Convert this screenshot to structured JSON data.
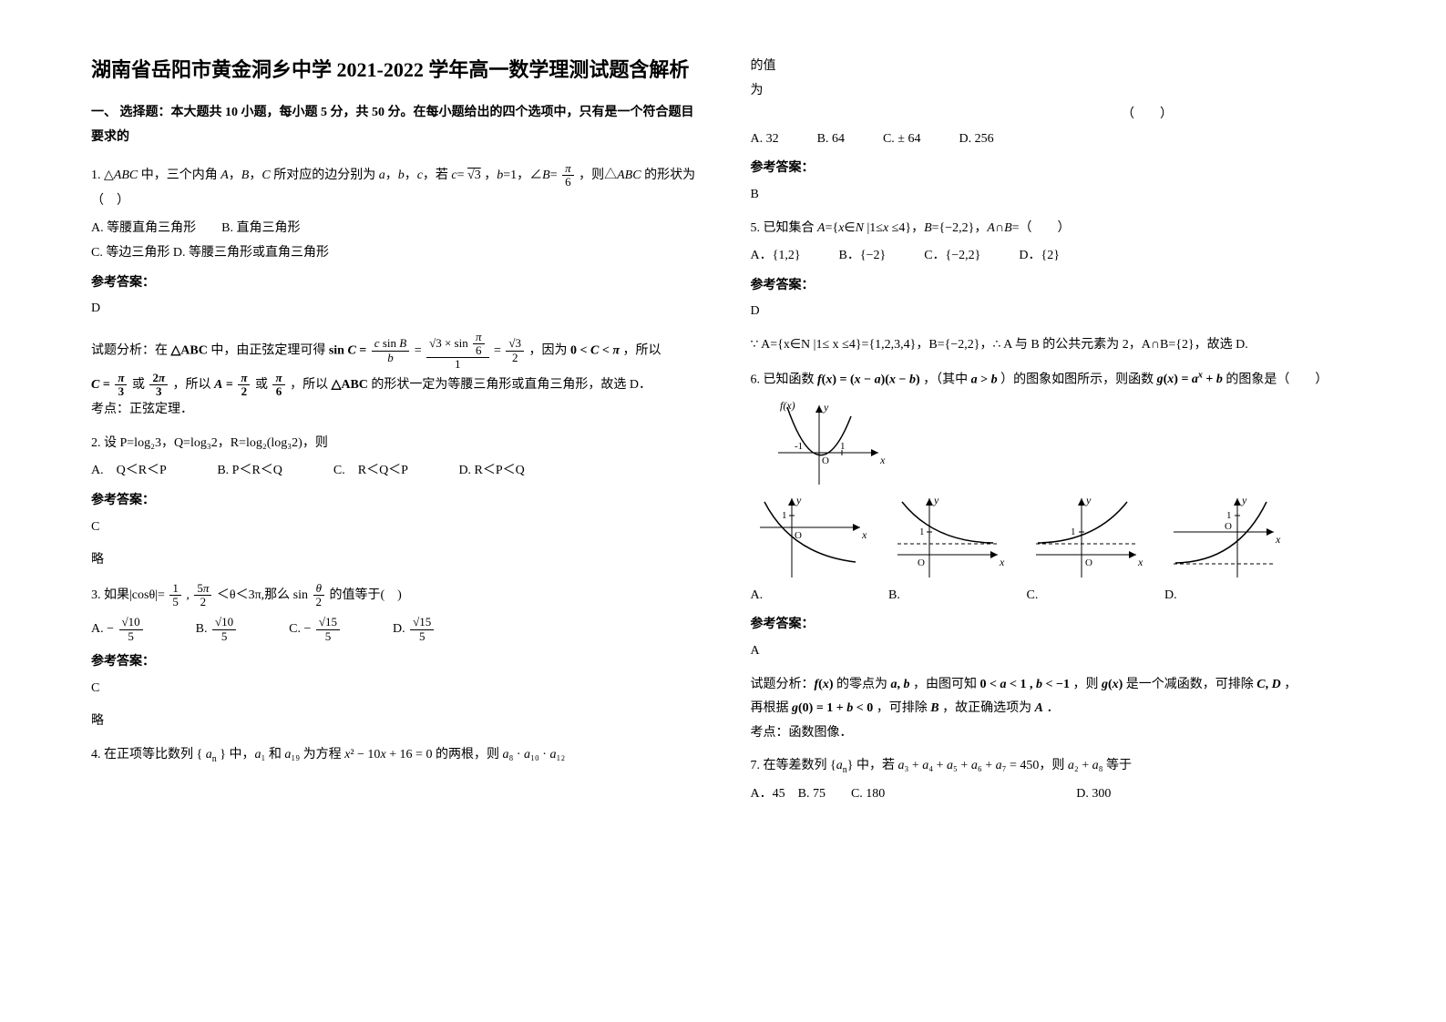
{
  "title": "湖南省岳阳市黄金洞乡中学 2021-2022 学年高一数学理测试题含解析",
  "section1_head": "一、 选择题：本大题共 10 小题，每小题 5 分，共 50 分。在每小题给出的四个选项中，只有是一个符合题目要求的",
  "q1_html": "1. △<i>ABC</i> 中，三个内角 <i>A</i>，<i>B</i>，<i>C</i> 所对应的边分别为 <i>a</i>，<i>b</i>，<i>c</i>，若 <i>c</i>= <span class='sqrt'>√3</span> ，<i>b</i>=1，∠<i>B</i>= <span class='frac'><span class='n'><i>π</i></span><span class='d'>6</span></span> ，则△<i>ABC</i> 的形状为（　）",
  "q1_opts": "A. 等腰直角三角形　　B. 直角三角形<br>C. 等边三角形 D. 等腰三角形或直角三角形",
  "ans_label": "参考答案：",
  "q1_ans": "D",
  "q1_expl_html": "试题分析：在 <b>△ABC</b> 中，由正弦定理可得 <b>sin <i>C</i> =</b> <span class='frac'><span class='n'><i>c</i> sin <i>B</i></span><span class='d'><i>b</i></span></span> = <span class='frac'><span class='n'>√3 × sin <span class='frac'><span class='n'><i>π</i></span><span class='d'>6</span></span></span><span class='d'>1</span></span> = <span class='frac'><span class='n'>√3</span><span class='d'>2</span></span> ，因为 <b>0 &lt; <i>C</i> &lt; <i>π</i></b> ，所以",
  "q1_expl2_html": "<b><i>C</i> = <span class='frac'><span class='n'><i>π</i></span><span class='d'>3</span></span></b> 或 <b><span class='frac'><span class='n'>2<i>π</i></span><span class='d'>3</span></span></b> ，所以 <b><i>A</i> = <span class='frac'><span class='n'><i>π</i></span><span class='d'>2</span></span></b> 或 <b><span class='frac'><span class='n'><i>π</i></span><span class='d'>6</span></span></b> ，所以 <b>△ABC</b> 的形状一定为等腰三角形或直角三角形，故选 D．",
  "q1_point": "考点：正弦定理．",
  "q2": "2. 设 P=log₂3，Q=log₃2，R=log₂(log₃2)，则",
  "q2_opts": "A.　Q＜R＜P　　　　B. P＜R＜Q　　　　C.　R＜Q＜P　　　　D. R＜P＜Q",
  "q2_ans": "C",
  "q2_note": "略",
  "q3_html": "3. 如果|cosθ|= <span class='frac'><span class='n'>1</span><span class='d'>5</span></span> , <span class='frac'><span class='n'>5<i>π</i></span><span class='d'>2</span></span> ＜θ＜3π,那么 sin <span class='frac'><span class='n'><i>θ</i></span><span class='d'>2</span></span> 的值等于(　)",
  "q3_opts_html": "A. − <span class='frac'><span class='n'>√10</span><span class='d'>5</span></span>　　　　B. <span class='frac'><span class='n'>√10</span><span class='d'>5</span></span>　　　　C. − <span class='frac'><span class='n'>√15</span><span class='d'>5</span></span>　　　　D. <span class='frac'><span class='n'>√15</span><span class='d'>5</span></span>",
  "q3_ans": "C",
  "q3_note": "略",
  "q4_html": "4. 在正项等比数列 { <i>a</i><sub>n</sub> } 中，<i>a</i>₁ 和 <i>a</i>₁₉ 为方程 <i>x</i>² − 10<i>x</i> + 16 = 0 的两根，则 <i>a</i>₈ · <i>a</i>₁₀ · <i>a</i>₁₂",
  "q4_cont1": "的值",
  "q4_cont2": "为",
  "q4_blank": "（　　）",
  "q4_opts": "A. 32　　　B. 64　　　C. ± 64　　　D. 256",
  "q4_ans": "B",
  "q5_html": "5. 已知集合 <i>A</i>={<i>x</i>∈<i>N</i> |1≤<i>x</i> ≤4}，<i>B</i>={−2,2}，<i>A</i>∩<i>B</i>=（　　）",
  "q5_opts": "A．{1,2}　　　B．{−2}　　　C．{−2,2}　　　D．{2}",
  "q5_ans": "D",
  "q5_expl": "∵ A={x∈N |1≤ x ≤4}={1,2,3,4}，B={−2,2}，∴ A 与 B 的公共元素为 2，A∩B={2}，故选 D.",
  "q6_html": "6. 已知函数 <b><i>f</i>(<i>x</i>) = (<i>x</i> − <i>a</i>)(<i>x</i> − <i>b</i>)</b> ，（其中 <b><i>a</i> &gt; <i>b</i></b> ）的图象如图所示，则函数 <b><i>g</i>(<i>x</i>) = <i>a</i><sup><i>x</i></sup> + <i>b</i></b> 的图象是（　　）",
  "q6_fig": {
    "f_label": "f(x)",
    "axis_y": "y",
    "axis_x": "x",
    "marks": [
      "-1",
      "O",
      "1"
    ],
    "curve_color": "#000000",
    "bg": "#ffffff"
  },
  "q6_opts_figs": {
    "labels": [
      "A.",
      "B.",
      "C.",
      "D."
    ],
    "axis_y": "y",
    "axis_x": "x",
    "origin_label": "O",
    "y1_label": "1",
    "dash_color": "#000000",
    "curve_color": "#000000"
  },
  "q6_ans": "A",
  "q6_expl1_html": "试题分析：<b><i>f</i>(<i>x</i>)</b> 的零点为 <b><i>a</i>, <i>b</i></b> ，由图可知 <b>0 &lt; <i>a</i> &lt; 1 , <i>b</i> &lt; −1</b> ，则 <b><i>g</i>(<i>x</i>)</b> 是一个减函数，可排除 <b><i>C</i>, <i>D</i></b> ，",
  "q6_expl2_html": "再根据 <b><i>g</i>(0) = 1 + <i>b</i> &lt; 0</b> ，可排除 <b><i>B</i></b> ，故正确选项为 <b><i>A</i></b> ．",
  "q6_point": "考点：函数图像．",
  "q7_html": "7. 在等差数列 {<i>a</i><sub>n</sub>} 中，若 <i>a</i>₃ + <i>a</i>₄ + <i>a</i>₅ + <i>a</i>₆ + <i>a</i>₇ = 450，则 <i>a</i>₂ + <i>a</i>₈ 等于",
  "q7_opts": "A．45　B. 75　　C. 180　　　　　　　　　　　　　　　D. 300"
}
